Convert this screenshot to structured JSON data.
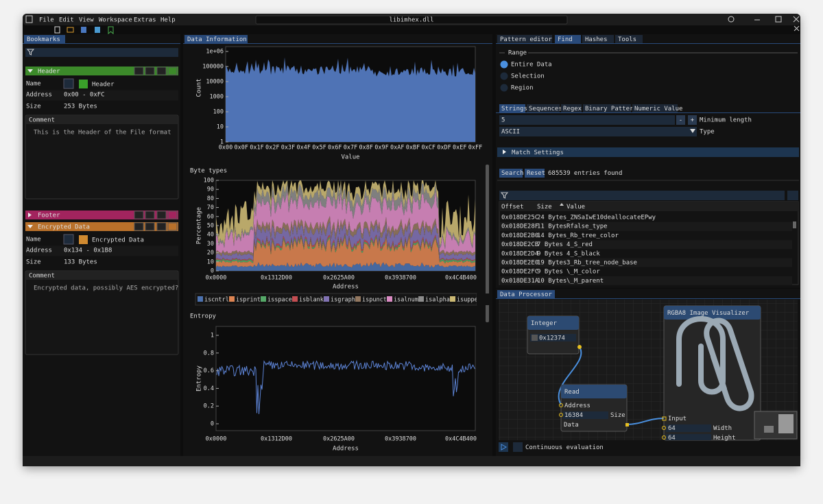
{
  "window": {
    "title": "libimhex.dll",
    "menu": [
      "File",
      "Edit",
      "View",
      "Workspace",
      "Extras",
      "Help"
    ]
  },
  "bookmarks": {
    "tab": "Bookmarks",
    "items": [
      {
        "title": "Header",
        "name_label": "Name",
        "name": "Header",
        "address_label": "Address",
        "address": "0x00 - 0xFC",
        "size_label": "Size",
        "size": "253 Bytes",
        "comment_label": "Comment",
        "comment": "This is the Header of the File format"
      },
      {
        "title": "Footer"
      },
      {
        "title": "Encrypted Data",
        "name_label": "Name",
        "name": "Encrypted Data",
        "address_label": "Address",
        "address": "0x134 - 0x1B8",
        "size_label": "Size",
        "size": "133 Bytes",
        "comment_label": "Comment",
        "comment": "Encrypted data, possibly AES encrypted?"
      }
    ]
  },
  "data_information": {
    "tab": "Data Information",
    "histogram": {
      "y_label": "Count",
      "x_label": "Value",
      "yticks": [
        "1e+06",
        "100000",
        "10000",
        "1000",
        "100",
        "10",
        "1"
      ],
      "xticks": [
        "0x00",
        "0x0F",
        "0x1F",
        "0x2F",
        "0x3F",
        "0x4F",
        "0x5F",
        "0x6F",
        "0x7F",
        "0x8F",
        "0x9F",
        "0xAF",
        "0xBF",
        "0xCF",
        "0xDF",
        "0xEF",
        "0xFF"
      ]
    },
    "byte_types": {
      "title": "Byte types",
      "y_label": "Percentage",
      "x_label": "Address",
      "yticks": [
        "100",
        "90",
        "80",
        "70",
        "60",
        "50",
        "40",
        "30",
        "20",
        "10",
        "0"
      ],
      "xticks": [
        "0x0000",
        "0x1312D00",
        "0x2625A00",
        "0x3938700",
        "0x4C4B400"
      ],
      "legend": [
        {
          "name": "iscntrl",
          "color": "#4c72b0"
        },
        {
          "name": "isprint",
          "color": "#dd8452"
        },
        {
          "name": "isspace",
          "color": "#55a868"
        },
        {
          "name": "isblank",
          "color": "#c44e52"
        },
        {
          "name": "isgraph",
          "color": "#8172b3"
        },
        {
          "name": "ispunct",
          "color": "#937860"
        },
        {
          "name": "isalnum",
          "color": "#da8bc3"
        },
        {
          "name": "isalpha",
          "color": "#8c8c8c"
        },
        {
          "name": "isupper",
          "color": "#ccb974"
        }
      ]
    },
    "entropy": {
      "title": "Entropy",
      "y_label": "Entropy",
      "x_label": "Address",
      "yticks": [
        "1",
        "0.8",
        "0.6",
        "0.4",
        "0.2",
        "0"
      ],
      "xticks": [
        "0x0000",
        "0x1312D00",
        "0x2625A00",
        "0x3938700",
        "0x4C4B400"
      ]
    }
  },
  "find": {
    "tabs": [
      "Pattern editor",
      "Find",
      "Hashes",
      "Tools"
    ],
    "range_label": "Range",
    "range_options": [
      "Entire Data",
      "Selection",
      "Region"
    ],
    "modes": [
      "Strings",
      "Sequences",
      "Regex",
      "Binary Pattern",
      "Numeric Value"
    ],
    "min_length": "5",
    "minus": "-",
    "plus": "+",
    "min_length_label": "Minimum length",
    "type": "ASCII",
    "type_label": "Type",
    "match_settings": "Match Settings",
    "search": "Search",
    "reset": "Reset",
    "entries": "685539 entries found",
    "columns": [
      "Offset",
      "Size",
      "Value"
    ],
    "rows": [
      [
        "0x018DE25C",
        "24 Bytes",
        "_ZNSaIwE10deallocateEPwy"
      ],
      [
        "0x018DE28F",
        "11 Bytes",
        "Rfalse_type"
      ],
      [
        "0x018DE2B0",
        "14 Bytes",
        "_Rb_tree_color"
      ],
      [
        "0x018DE2CB",
        "7 Bytes",
        "4_S_red"
      ],
      [
        "0x018DE2D4",
        "9 Bytes",
        "4_S_black"
      ],
      [
        "0x018DE2E0",
        "19 Bytes",
        "3_Rb_tree_node_base"
      ],
      [
        "0x018DE2FC",
        "9 Bytes",
        "\\_M_color"
      ],
      [
        "0x018DE31A",
        "10 Bytes",
        "\\_M_parent"
      ]
    ]
  },
  "data_processor": {
    "tab": "Data Processor",
    "integer": {
      "title": "Integer",
      "value": "0x12374"
    },
    "read": {
      "title": "Read",
      "address": "Address",
      "size_value": "16384",
      "size": "Size",
      "data": "Data"
    },
    "visualizer": {
      "title": "RGBA8 Image Visualizer",
      "input": "Input",
      "width_value": "64",
      "width": "Width",
      "height_value": "64",
      "height": "Height"
    },
    "continuous": "Continuous evaluation"
  }
}
